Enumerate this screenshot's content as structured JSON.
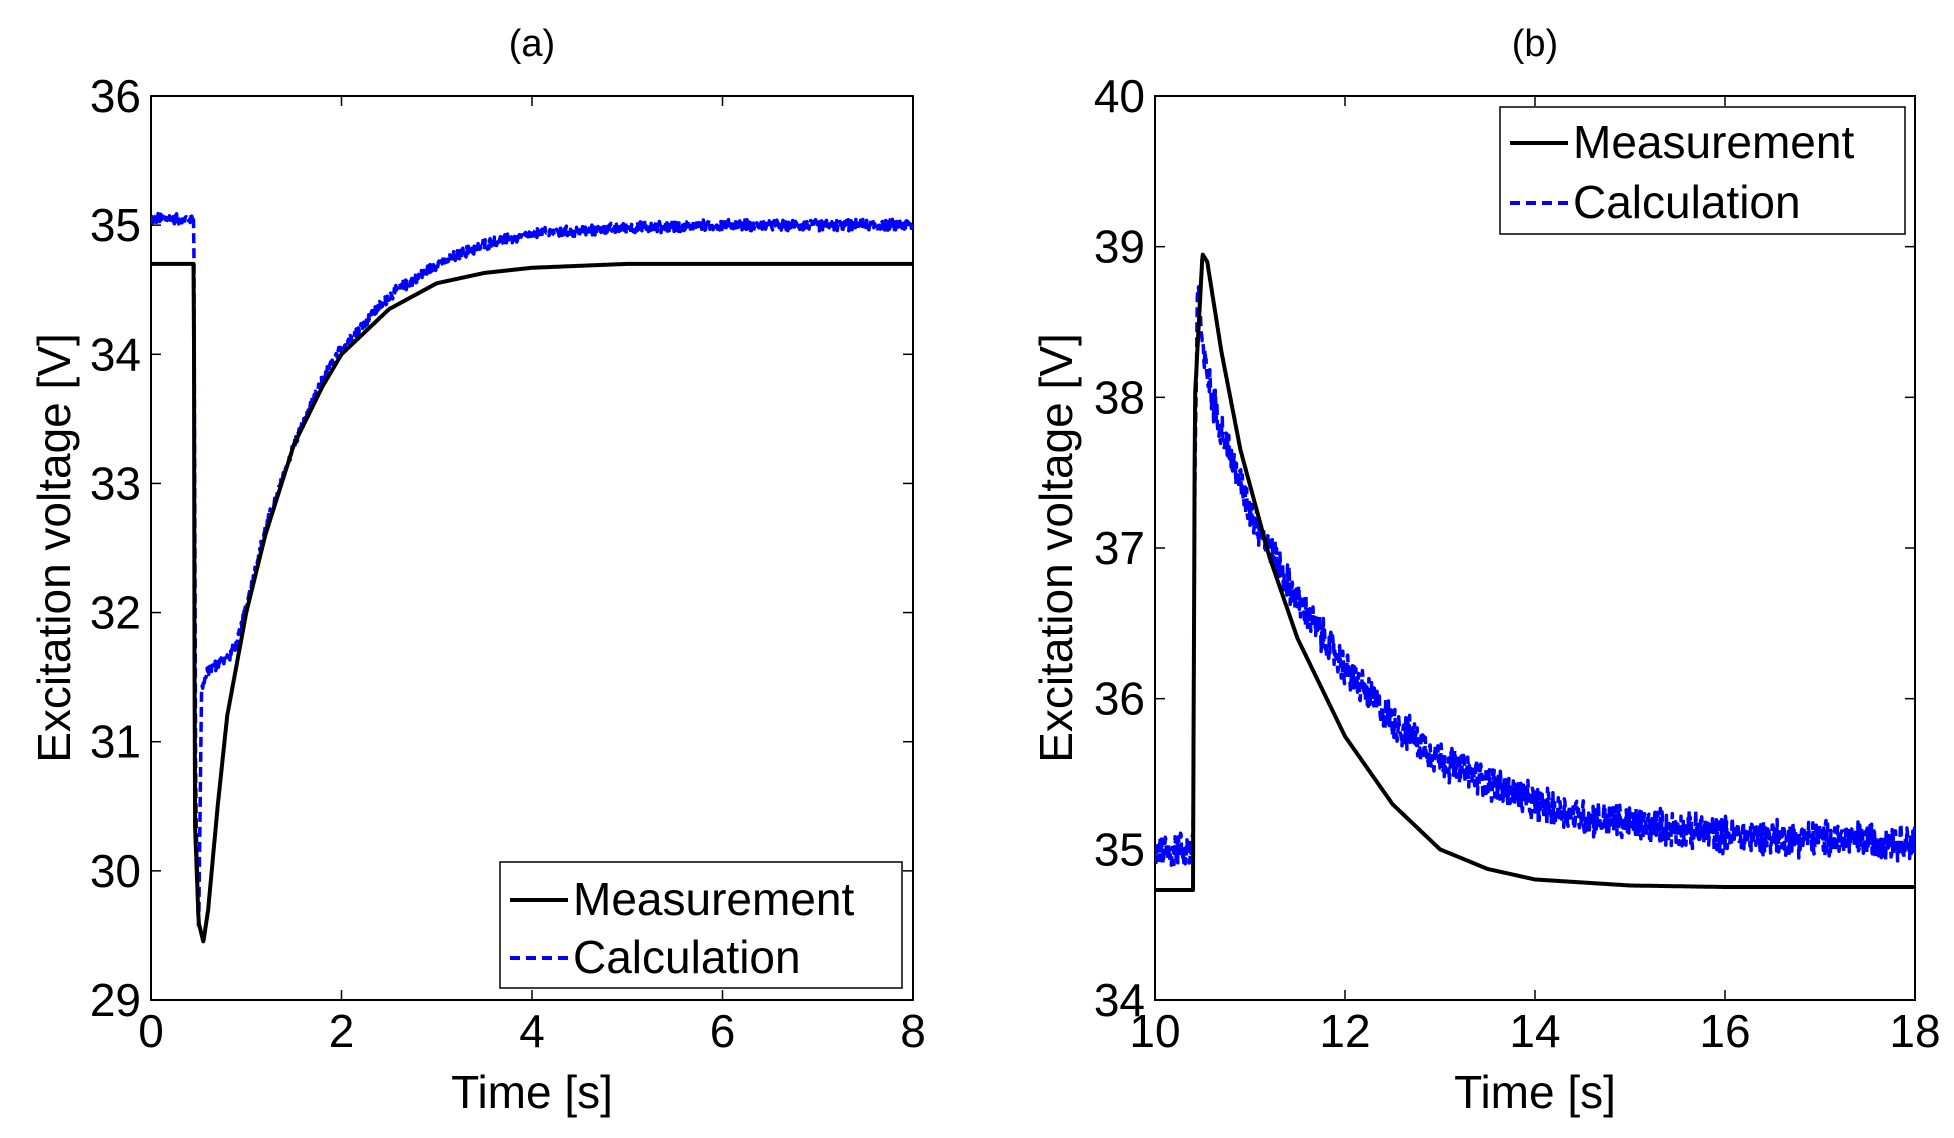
{
  "chart_data": [
    {
      "panel": "(a)",
      "type": "line",
      "title": "(a)",
      "xlabel": "Time [s]",
      "ylabel": "Excitation voltage [V]",
      "xlim": [
        0,
        8
      ],
      "ylim": [
        29,
        36
      ],
      "xticks": [
        0,
        2,
        4,
        6,
        8
      ],
      "yticks": [
        29,
        30,
        31,
        32,
        33,
        34,
        35,
        36
      ],
      "grid": false,
      "legend_position": "bottom-right",
      "series": [
        {
          "name": "Measurement",
          "style": "solid",
          "color": "#000000",
          "x": [
            0,
            0.45,
            0.46,
            0.5,
            0.55,
            0.6,
            0.7,
            0.8,
            1.0,
            1.2,
            1.5,
            1.8,
            2.0,
            2.5,
            3.0,
            3.5,
            4.0,
            5.0,
            6.0,
            7.0,
            8.0
          ],
          "y": [
            34.7,
            34.7,
            30.4,
            29.6,
            29.45,
            29.7,
            30.5,
            31.2,
            32.0,
            32.6,
            33.3,
            33.75,
            34.0,
            34.35,
            34.55,
            34.63,
            34.67,
            34.7,
            34.7,
            34.7,
            34.7
          ]
        },
        {
          "name": "Calculation",
          "style": "dashed",
          "color": "#0000ff",
          "x": [
            0,
            0.45,
            0.47,
            0.5,
            0.53,
            0.6,
            0.7,
            0.8,
            0.9,
            1.0,
            1.2,
            1.5,
            1.8,
            2.0,
            2.5,
            3.0,
            3.5,
            4.0,
            5.0,
            6.0,
            7.0,
            8.0
          ],
          "y": [
            35.05,
            35.05,
            30.5,
            29.5,
            31.4,
            31.55,
            31.6,
            31.65,
            31.75,
            32.05,
            32.65,
            33.3,
            33.8,
            34.05,
            34.45,
            34.7,
            34.85,
            34.93,
            34.98,
            35.0,
            35.0,
            35.0
          ]
        }
      ]
    },
    {
      "panel": "(b)",
      "type": "line",
      "title": "(b)",
      "xlabel": "Time [s]",
      "ylabel": "Excitation voltage [V]",
      "xlim": [
        10,
        18
      ],
      "ylim": [
        34,
        40
      ],
      "xticks": [
        10,
        12,
        14,
        16,
        18
      ],
      "yticks": [
        34,
        35,
        36,
        37,
        38,
        39,
        40
      ],
      "grid": false,
      "legend_position": "top-right",
      "series": [
        {
          "name": "Measurement",
          "style": "solid",
          "color": "#000000",
          "x": [
            10,
            10.4,
            10.42,
            10.5,
            10.55,
            10.7,
            10.9,
            11.2,
            11.5,
            12.0,
            12.5,
            13.0,
            13.5,
            14.0,
            15.0,
            16.0,
            17.0,
            18.0
          ],
          "y": [
            34.73,
            34.73,
            38.0,
            38.95,
            38.9,
            38.3,
            37.65,
            36.95,
            36.4,
            35.75,
            35.3,
            35.0,
            34.87,
            34.8,
            34.76,
            34.75,
            34.75,
            34.75
          ],
          "noise": 0.0
        },
        {
          "name": "Calculation",
          "style": "dashed",
          "color": "#0000ff",
          "x": [
            10,
            10.4,
            10.42,
            10.45,
            10.5,
            10.6,
            10.8,
            11.0,
            11.5,
            12.0,
            12.5,
            13.0,
            13.5,
            14.0,
            14.5,
            15.0,
            16.0,
            17.0,
            18.0
          ],
          "y": [
            35.0,
            35.0,
            37.5,
            38.8,
            38.3,
            38.0,
            37.6,
            37.25,
            36.65,
            36.2,
            35.85,
            35.6,
            35.45,
            35.3,
            35.22,
            35.17,
            35.1,
            35.07,
            35.05
          ],
          "noise": 0.14
        }
      ]
    }
  ]
}
